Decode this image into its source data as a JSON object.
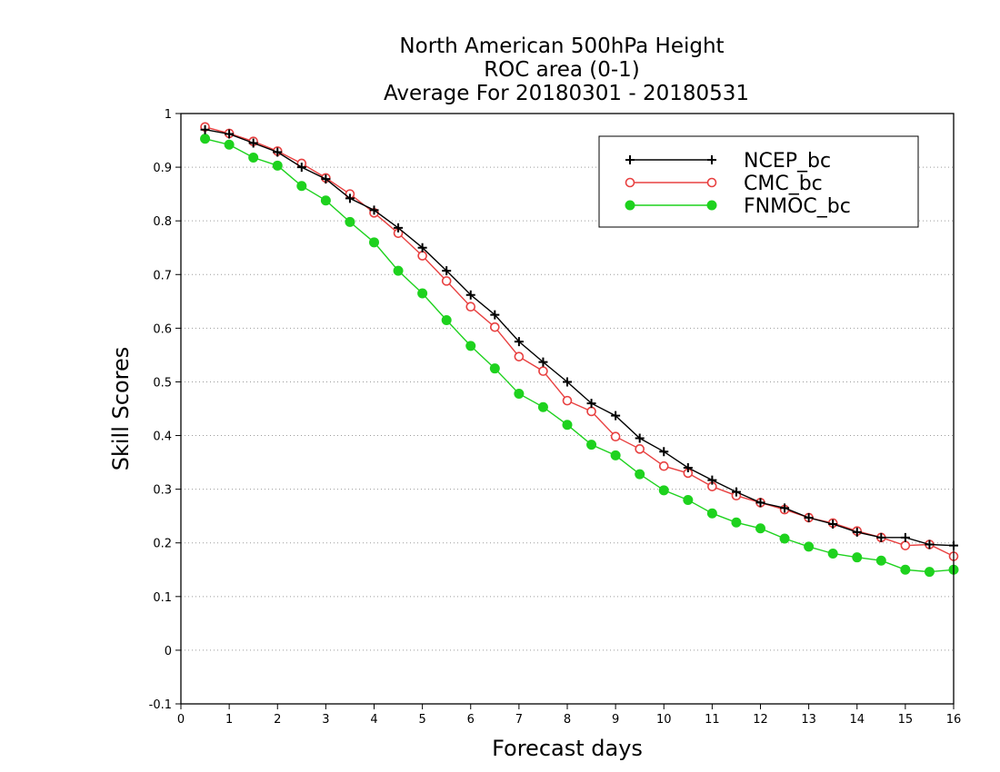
{
  "chart_data": {
    "type": "line",
    "title_lines": [
      "North American 500hPa Height",
      "ROC area (0-1)",
      "Average For 20180301 - 20180531"
    ],
    "xlabel": "Forecast days",
    "ylabel": "Skill Scores",
    "xlim": [
      0,
      16
    ],
    "ylim": [
      -0.1,
      1
    ],
    "xticks": [
      0,
      1,
      2,
      3,
      4,
      5,
      6,
      7,
      8,
      9,
      10,
      11,
      12,
      13,
      14,
      15,
      16
    ],
    "yticks": [
      -0.1,
      0,
      0.1,
      0.2,
      0.3,
      0.4,
      0.5,
      0.6,
      0.7,
      0.8,
      0.9,
      1
    ],
    "ytick_labels": [
      "-0.1",
      "0",
      "0.1",
      "0.2",
      "0.3",
      "0.4",
      "0.5",
      "0.6",
      "0.7",
      "0.8",
      "0.9",
      "1"
    ],
    "grid": "horizontal dotted",
    "legend_position": "top-right",
    "x": [
      0.5,
      1,
      1.5,
      2,
      2.5,
      3,
      3.5,
      4,
      4.5,
      5,
      5.5,
      6,
      6.5,
      7,
      7.5,
      8,
      8.5,
      9,
      9.5,
      10,
      10.5,
      11,
      11.5,
      12,
      12.5,
      13,
      13.5,
      14,
      14.5,
      15,
      15.5,
      16
    ],
    "series": [
      {
        "name": "NCEP_bc",
        "color": "#000000",
        "marker": "plus",
        "values": [
          0.97,
          0.962,
          0.945,
          0.928,
          0.9,
          0.878,
          0.842,
          0.82,
          0.787,
          0.75,
          0.707,
          0.662,
          0.625,
          0.575,
          0.537,
          0.5,
          0.46,
          0.437,
          0.395,
          0.37,
          0.34,
          0.317,
          0.295,
          0.275,
          0.265,
          0.247,
          0.235,
          0.22,
          0.21,
          0.21,
          0.197,
          0.195
        ]
      },
      {
        "name": "CMC_bc",
        "color": "#e84040",
        "marker": "open-circle",
        "values": [
          0.975,
          0.963,
          0.948,
          0.93,
          0.907,
          0.88,
          0.85,
          0.815,
          0.777,
          0.735,
          0.688,
          0.64,
          0.602,
          0.547,
          0.52,
          0.465,
          0.445,
          0.398,
          0.375,
          0.343,
          0.33,
          0.305,
          0.288,
          0.275,
          0.262,
          0.247,
          0.237,
          0.222,
          0.21,
          0.195,
          0.197,
          0.175
        ]
      },
      {
        "name": "FNMOC_bc",
        "color": "#1ed21e",
        "marker": "filled-circle",
        "values": [
          0.953,
          0.942,
          0.918,
          0.903,
          0.865,
          0.838,
          0.798,
          0.76,
          0.707,
          0.665,
          0.615,
          0.567,
          0.525,
          0.478,
          0.453,
          0.42,
          0.383,
          0.363,
          0.328,
          0.298,
          0.28,
          0.255,
          0.238,
          0.227,
          0.208,
          0.193,
          0.18,
          0.173,
          0.167,
          0.15,
          0.146,
          0.15
        ]
      }
    ]
  }
}
